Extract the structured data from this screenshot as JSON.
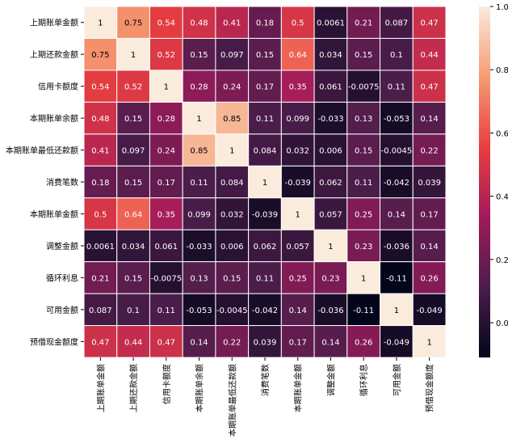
{
  "chart_data": {
    "type": "heatmap",
    "x_categories": [
      "上期账单金额",
      "上期还款金额",
      "信用卡额度",
      "本期账单余额",
      "本期账单最低还款额",
      "消费笔数",
      "本期账单金额",
      "调整金额",
      "循环利息",
      "可用金额",
      "预借现金额度"
    ],
    "y_categories": [
      "上期账单金额",
      "上期还款金额",
      "信用卡额度",
      "本期账单余额",
      "本期账单最低还款额",
      "消费笔数",
      "本期账单金额",
      "调整金额",
      "循环利息",
      "可用金额",
      "预借现金额度"
    ],
    "z": [
      [
        1,
        0.75,
        0.54,
        0.48,
        0.41,
        0.18,
        0.5,
        0.0061,
        0.21,
        0.087,
        0.47
      ],
      [
        0.75,
        1,
        0.52,
        0.15,
        0.097,
        0.15,
        0.64,
        0.034,
        0.15,
        0.1,
        0.44
      ],
      [
        0.54,
        0.52,
        1,
        0.28,
        0.24,
        0.17,
        0.35,
        0.061,
        -0.0075,
        0.11,
        0.47
      ],
      [
        0.48,
        0.15,
        0.28,
        1,
        0.85,
        0.11,
        0.099,
        -0.033,
        0.13,
        -0.053,
        0.14
      ],
      [
        0.41,
        0.097,
        0.24,
        0.85,
        1,
        0.084,
        0.032,
        0.006,
        0.15,
        -0.0045,
        0.22
      ],
      [
        0.18,
        0.15,
        0.17,
        0.11,
        0.084,
        1,
        -0.039,
        0.062,
        0.11,
        -0.042,
        0.039
      ],
      [
        0.5,
        0.64,
        0.35,
        0.099,
        0.032,
        -0.039,
        1,
        0.057,
        0.25,
        0.14,
        0.17
      ],
      [
        0.0061,
        0.034,
        0.061,
        -0.033,
        0.006,
        0.062,
        0.057,
        1,
        0.23,
        -0.036,
        0.14
      ],
      [
        0.21,
        0.15,
        -0.0075,
        0.13,
        0.15,
        0.11,
        0.25,
        0.23,
        1,
        -0.11,
        0.26
      ],
      [
        0.087,
        0.1,
        0.11,
        -0.053,
        -0.0045,
        -0.042,
        0.14,
        -0.036,
        -0.11,
        1,
        -0.049
      ],
      [
        0.47,
        0.44,
        0.47,
        0.14,
        0.22,
        0.039,
        0.17,
        0.14,
        0.26,
        -0.049,
        1
      ]
    ],
    "zlim": [
      -0.11,
      1
    ],
    "colormap": [
      "#03051a",
      "#4c1d4b",
      "#a11a5b",
      "#e83f3f",
      "#f69c73",
      "#faebdd"
    ],
    "colorbar_ticks": [
      {
        "value": 0,
        "label": "0.0"
      },
      {
        "value": 0.2,
        "label": "0.2"
      },
      {
        "value": 0.4,
        "label": "0.4"
      },
      {
        "value": 0.6,
        "label": "0.6"
      },
      {
        "value": 0.8,
        "label": "0.8"
      },
      {
        "value": 1,
        "label": "1.0"
      }
    ]
  }
}
